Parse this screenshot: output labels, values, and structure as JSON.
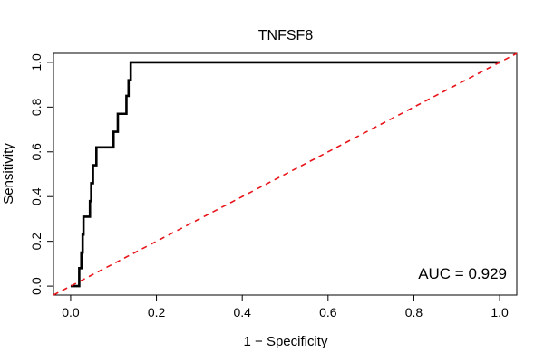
{
  "chart_data": {
    "type": "line",
    "title": "TNFSF8",
    "xlabel": "1 − Specificity",
    "ylabel": "Sensitivity",
    "xlim": [
      -0.04,
      1.04
    ],
    "ylim": [
      -0.04,
      1.04
    ],
    "x_ticks": [
      0.0,
      0.2,
      0.4,
      0.6,
      0.8,
      1.0
    ],
    "x_tick_labels": [
      "0.0",
      "0.2",
      "0.4",
      "0.6",
      "0.8",
      "1.0"
    ],
    "y_ticks": [
      0.0,
      0.2,
      0.4,
      0.6,
      0.8,
      1.0
    ],
    "y_tick_labels": [
      "0.0",
      "0.2",
      "0.4",
      "0.6",
      "0.8",
      "1.0"
    ],
    "grid": false,
    "annotation": "AUC = 0.929",
    "series": [
      {
        "color": "#000000",
        "style": "solid",
        "x": [
          0.0,
          0.02,
          0.02,
          0.025,
          0.025,
          0.028,
          0.028,
          0.03,
          0.03,
          0.045,
          0.045,
          0.048,
          0.048,
          0.052,
          0.052,
          0.06,
          0.06,
          0.075,
          0.075,
          0.1,
          0.1,
          0.11,
          0.11,
          0.13,
          0.13,
          0.135,
          0.135,
          0.14,
          0.14,
          0.16,
          0.25,
          0.4,
          0.6,
          0.8,
          1.0
        ],
        "y": [
          0.0,
          0.0,
          0.08,
          0.08,
          0.15,
          0.15,
          0.23,
          0.23,
          0.31,
          0.31,
          0.38,
          0.38,
          0.46,
          0.46,
          0.54,
          0.54,
          0.62,
          0.62,
          0.62,
          0.62,
          0.69,
          0.69,
          0.77,
          0.77,
          0.85,
          0.85,
          0.92,
          0.92,
          1.0,
          1.0,
          1.0,
          1.0,
          1.0,
          1.0,
          1.0
        ]
      },
      {
        "color": "#e8141a",
        "style": "dashed",
        "x": [
          -0.04,
          1.04
        ],
        "y": [
          -0.04,
          1.04
        ]
      }
    ]
  }
}
